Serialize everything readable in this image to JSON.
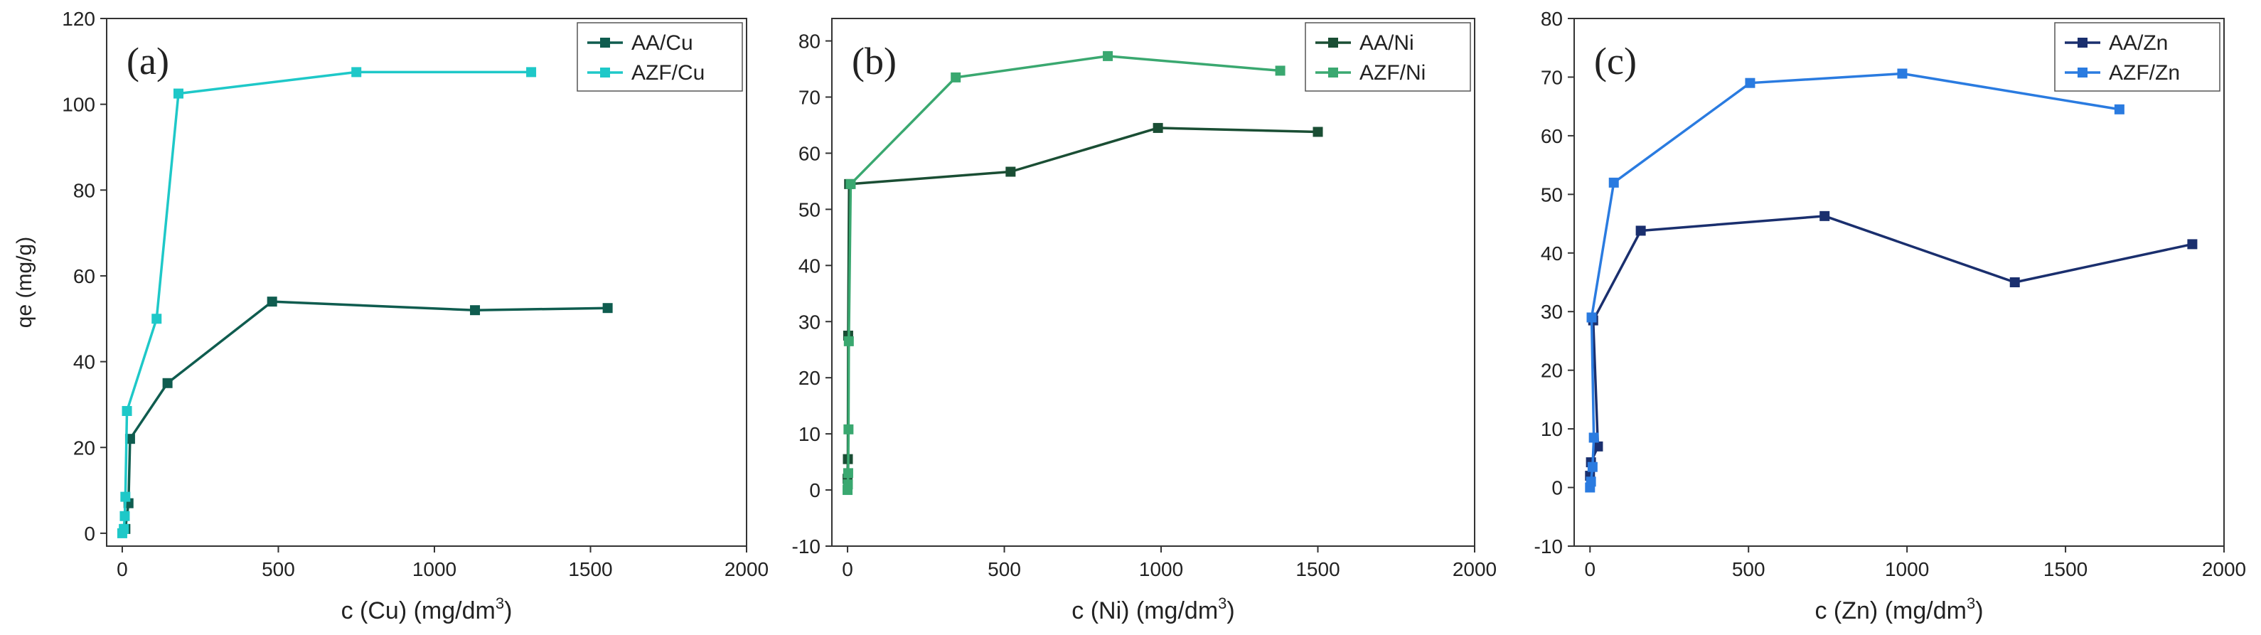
{
  "chart_data": [
    {
      "type": "line",
      "panel_label": "(a)",
      "title": "",
      "xlabel_prefix": "c (Cu) (mg/dm",
      "xlabel_sup": "3",
      "xlabel_suffix": ")",
      "ylabel": "qe (mg/g)",
      "xlim": [
        -50,
        2000
      ],
      "ylim": [
        -3,
        120
      ],
      "xticks": [
        0,
        500,
        1000,
        1500,
        2000
      ],
      "yticks": [
        0,
        20,
        40,
        60,
        80,
        100,
        120
      ],
      "legend_position": "top-right",
      "series": [
        {
          "name": "AA/Cu",
          "color": "#0f5c4f",
          "points": [
            [
              10,
              1
            ],
            [
              20,
              7
            ],
            [
              25,
              22
            ],
            [
              145,
              35
            ],
            [
              480,
              54
            ],
            [
              1130,
              52
            ],
            [
              1555,
              52.5
            ]
          ]
        },
        {
          "name": "AZF/Cu",
          "color": "#1ec8c8",
          "points": [
            [
              0,
              0
            ],
            [
              5,
              1
            ],
            [
              8,
              4
            ],
            [
              10,
              8.5
            ],
            [
              15,
              28.5
            ],
            [
              110,
              50
            ],
            [
              180,
              102.5
            ],
            [
              750,
              107.5
            ],
            [
              1310,
              107.5
            ]
          ]
        }
      ]
    },
    {
      "type": "line",
      "panel_label": "(b)",
      "title": "",
      "xlabel_prefix": "c (Ni) (mg/dm",
      "xlabel_sup": "3",
      "xlabel_suffix": ")",
      "ylabel": "",
      "xlim": [
        -50,
        2000
      ],
      "ylim": [
        -10,
        84
      ],
      "xticks": [
        0,
        500,
        1000,
        1500,
        2000
      ],
      "yticks": [
        -10,
        0,
        10,
        20,
        30,
        40,
        50,
        60,
        70,
        80
      ],
      "legend_position": "top-right",
      "series": [
        {
          "name": "AA/Ni",
          "color": "#1a4e34",
          "points": [
            [
              0,
              2
            ],
            [
              1,
              5.5
            ],
            [
              2,
              27.5
            ],
            [
              5,
              54.5
            ],
            [
              520,
              56.7
            ],
            [
              990,
              64.5
            ],
            [
              1500,
              63.8
            ]
          ]
        },
        {
          "name": "AZF/Ni",
          "color": "#3aa870",
          "points": [
            [
              0,
              0
            ],
            [
              1,
              1
            ],
            [
              2,
              3
            ],
            [
              3,
              10.8
            ],
            [
              4,
              26.5
            ],
            [
              10,
              54.5
            ],
            [
              345,
              73.5
            ],
            [
              830,
              77.3
            ],
            [
              1380,
              74.7
            ]
          ]
        }
      ]
    },
    {
      "type": "line",
      "panel_label": "(c)",
      "title": "",
      "xlabel_prefix": "c (Zn) (mg/dm",
      "xlabel_sup": "3",
      "xlabel_suffix": ")",
      "ylabel": "",
      "xlim": [
        -50,
        2000
      ],
      "ylim": [
        -10,
        80
      ],
      "xticks": [
        0,
        500,
        1000,
        1500,
        2000
      ],
      "yticks": [
        -10,
        0,
        10,
        20,
        30,
        40,
        50,
        60,
        70,
        80
      ],
      "legend_position": "top-right",
      "series": [
        {
          "name": "AA/Zn",
          "color": "#1a2f6e",
          "points": [
            [
              0,
              2
            ],
            [
              3,
              4.3
            ],
            [
              25,
              7
            ],
            [
              10,
              28.5
            ],
            [
              160,
              43.8
            ],
            [
              740,
              46.3
            ],
            [
              1340,
              35
            ],
            [
              1900,
              41.5
            ]
          ]
        },
        {
          "name": "AZF/Zn",
          "color": "#2a7be0",
          "points": [
            [
              0,
              0
            ],
            [
              3,
              1
            ],
            [
              8,
              3.5
            ],
            [
              12,
              8.5
            ],
            [
              5,
              29
            ],
            [
              75,
              52
            ],
            [
              505,
              69
            ],
            [
              985,
              70.6
            ],
            [
              1670,
              64.5
            ]
          ]
        }
      ]
    }
  ]
}
